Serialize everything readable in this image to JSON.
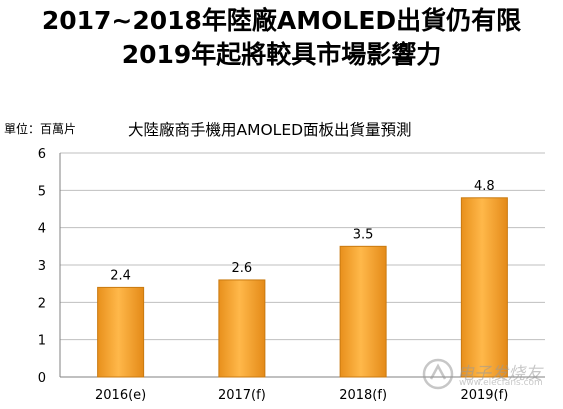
{
  "headline": {
    "line1": "2017~2018年陸廠AMOLED出貨仍有限",
    "line2": "2019年起將較具市場影響力"
  },
  "chart_data": {
    "type": "bar",
    "title": "大陸廠商手機用AMOLED面板出貨量預測",
    "unit_label": "單位：百萬片",
    "categories": [
      "2016(e)",
      "2017(f)",
      "2018(f)",
      "2019(f)"
    ],
    "values": [
      2.4,
      2.6,
      3.5,
      4.8
    ],
    "data_labels": [
      "2.4",
      "2.6",
      "3.5",
      "4.8"
    ],
    "y_ticks": [
      0,
      1,
      2,
      3,
      4,
      5,
      6
    ],
    "ylim": [
      0,
      6
    ],
    "grid": true,
    "bar_color": "#F5A030",
    "bar_edge_color": "#C97A10"
  },
  "watermark": {
    "text": "电子发烧友",
    "url": "www.elecfans.com"
  }
}
